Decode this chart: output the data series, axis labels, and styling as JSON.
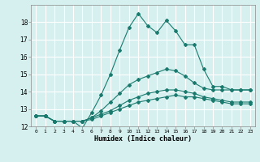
{
  "title": "",
  "xlabel": "Humidex (Indice chaleur)",
  "bg_color": "#d6f0ef",
  "grid_color": "#ffffff",
  "line_color": "#1a7a6e",
  "xlim": [
    -0.5,
    23.5
  ],
  "ylim": [
    12,
    19
  ],
  "yticks": [
    12,
    13,
    14,
    15,
    16,
    17,
    18
  ],
  "xticks": [
    0,
    1,
    2,
    3,
    4,
    5,
    6,
    7,
    8,
    9,
    10,
    11,
    12,
    13,
    14,
    15,
    16,
    17,
    18,
    19,
    20,
    21,
    22,
    23
  ],
  "line1_x": [
    0,
    1,
    2,
    3,
    4,
    5,
    6,
    7,
    8,
    9,
    10,
    11,
    12,
    13,
    14,
    15,
    16,
    17,
    18,
    19,
    20,
    21,
    22,
    23
  ],
  "line1_y": [
    12.6,
    12.6,
    12.3,
    12.3,
    12.3,
    11.9,
    12.8,
    13.8,
    15.0,
    16.4,
    17.7,
    18.5,
    17.8,
    17.4,
    18.1,
    17.5,
    16.7,
    16.7,
    15.3,
    14.3,
    14.3,
    14.1,
    14.1,
    14.1
  ],
  "line2_x": [
    0,
    1,
    2,
    3,
    4,
    5,
    6,
    7,
    8,
    9,
    10,
    11,
    12,
    13,
    14,
    15,
    16,
    17,
    18,
    19,
    20,
    21,
    22,
    23
  ],
  "line2_y": [
    12.6,
    12.6,
    12.3,
    12.3,
    12.3,
    12.3,
    12.5,
    12.9,
    13.4,
    13.9,
    14.4,
    14.7,
    14.9,
    15.1,
    15.3,
    15.2,
    14.9,
    14.5,
    14.2,
    14.1,
    14.1,
    14.1,
    14.1,
    14.1
  ],
  "line3_x": [
    0,
    1,
    2,
    3,
    4,
    5,
    6,
    7,
    8,
    9,
    10,
    11,
    12,
    13,
    14,
    15,
    16,
    17,
    18,
    19,
    20,
    21,
    22,
    23
  ],
  "line3_y": [
    12.6,
    12.6,
    12.3,
    12.3,
    12.3,
    12.3,
    12.5,
    12.7,
    12.9,
    13.2,
    13.5,
    13.7,
    13.9,
    14.0,
    14.1,
    14.1,
    14.0,
    13.9,
    13.7,
    13.6,
    13.5,
    13.4,
    13.4,
    13.4
  ],
  "line4_x": [
    0,
    1,
    2,
    3,
    4,
    5,
    6,
    7,
    8,
    9,
    10,
    11,
    12,
    13,
    14,
    15,
    16,
    17,
    18,
    19,
    20,
    21,
    22,
    23
  ],
  "line4_y": [
    12.6,
    12.6,
    12.3,
    12.3,
    12.3,
    12.3,
    12.4,
    12.6,
    12.8,
    13.0,
    13.2,
    13.4,
    13.5,
    13.6,
    13.7,
    13.8,
    13.7,
    13.7,
    13.6,
    13.5,
    13.4,
    13.3,
    13.3,
    13.3
  ]
}
